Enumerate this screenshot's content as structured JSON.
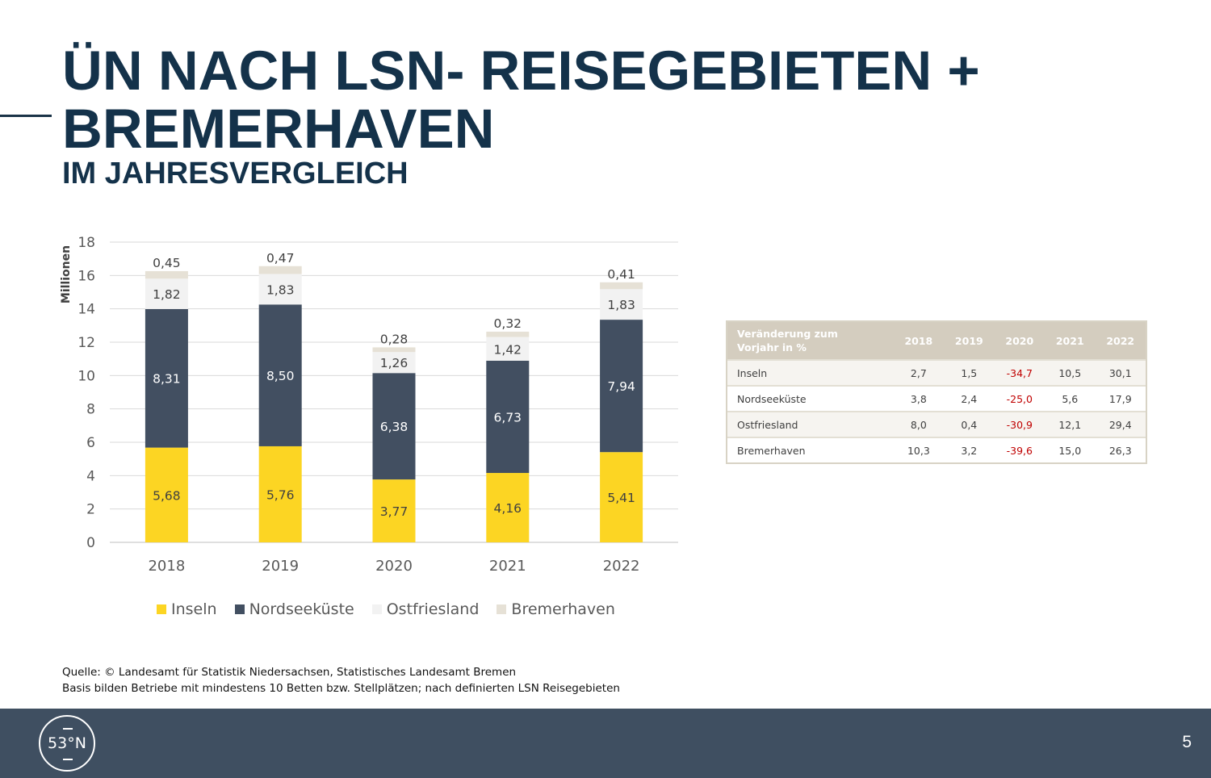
{
  "header": {
    "title_line1": "ÜN NACH LSN- REISEGEBIETEN +",
    "title_line2": "BREMERHAVEN",
    "subtitle": "IM JAHRESVERGLEICH"
  },
  "chart_data": {
    "type": "bar",
    "stacked": true,
    "ylabel": "Millionen",
    "ylim": [
      0,
      18
    ],
    "yticks": [
      "0",
      "2",
      "4",
      "6",
      "8",
      "10",
      "12",
      "14",
      "16",
      "18"
    ],
    "grid": true,
    "legend_position": "bottom",
    "categories": [
      "2018",
      "2019",
      "2020",
      "2021",
      "2022"
    ],
    "series": [
      {
        "name": "Inseln",
        "values": [
          5.68,
          5.76,
          3.77,
          4.16,
          5.41
        ],
        "labels": [
          "5,68",
          "5,76",
          "3,77",
          "4,16",
          "5,41"
        ]
      },
      {
        "name": "Nordseeküste",
        "values": [
          8.31,
          8.5,
          6.38,
          6.73,
          7.94
        ],
        "labels": [
          "8,31",
          "8,50",
          "6,38",
          "6,73",
          "7,94"
        ]
      },
      {
        "name": "Ostfriesland",
        "values": [
          1.82,
          1.83,
          1.26,
          1.42,
          1.83
        ],
        "labels": [
          "1,82",
          "1,83",
          "1,26",
          "1,42",
          "1,83"
        ]
      },
      {
        "name": "Bremerhaven",
        "values": [
          0.45,
          0.47,
          0.28,
          0.32,
          0.41
        ],
        "labels": [
          "0,45",
          "0,47",
          "0,28",
          "0,32",
          "0,41"
        ]
      }
    ],
    "colors": {
      "Inseln": "#fcd523",
      "Nordseeküste": "#424f61",
      "Ostfriesland": "#f2f2f2",
      "Bremerhaven": "#e6e1d6"
    },
    "label_colors": {
      "Inseln": "#404040",
      "Nordseeküste": "#ffffff",
      "Ostfriesland": "#404040",
      "Bremerhaven": "#404040"
    }
  },
  "table": {
    "header_line1": "Veränderung zum",
    "header_line2": "Vorjahr in %",
    "years": [
      "2018",
      "2019",
      "2020",
      "2021",
      "2022"
    ],
    "rows": [
      {
        "name": "Inseln",
        "values": [
          "2,7",
          "1,5",
          "-34,7",
          "10,5",
          "30,1"
        ]
      },
      {
        "name": "Nordseeküste",
        "values": [
          "3,8",
          "2,4",
          "-25,0",
          "5,6",
          "17,9"
        ]
      },
      {
        "name": "Ostfriesland",
        "values": [
          "8,0",
          "0,4",
          "-30,9",
          "12,1",
          "29,4"
        ]
      },
      {
        "name": "Bremerhaven",
        "values": [
          "10,3",
          "3,2",
          "-39,6",
          "15,0",
          "26,3"
        ]
      }
    ]
  },
  "source": {
    "line1": "Quelle: © Landesamt für Statistik Niedersachsen, Statistisches Landesamt Bremen",
    "line2": "Basis bilden Betriebe mit mindestens 10 Betten bzw. Stellplätzen; nach definierten LSN Reisegebieten"
  },
  "footer": {
    "logo_text": "53°N",
    "page_number": "5"
  }
}
